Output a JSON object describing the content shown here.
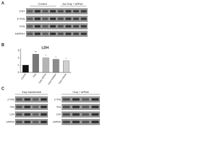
{
  "panel_a": {
    "label": "A",
    "column_headers": [
      "Control",
      "Ad-Gαq + siRNA"
    ],
    "rows": [
      "LDH",
      "p-Gαq",
      "Gαq",
      "GAPDH"
    ]
  },
  "chart_data": {
    "type": "bar",
    "panel_label": "B",
    "title": "LDH",
    "categories": [
      "Control",
      "Gαq",
      "Gαq+siRNA",
      "Gαq+inhibitor",
      "Gαq+vehicle"
    ],
    "values": [
      1.0,
      2.5,
      2.0,
      1.8,
      1.6
    ],
    "colors": [
      "#111111",
      "#777777",
      "#b5b5b5",
      "#8c8c8c",
      "#cfcfcf"
    ],
    "bar_annotations": [
      null,
      "**",
      "*",
      "*",
      "*"
    ],
    "ylim": [
      0,
      3
    ],
    "yticks": [
      0,
      1,
      2,
      3
    ]
  },
  "panel_c": {
    "label": "C",
    "left": {
      "header": "Gαq transfected",
      "rows": [
        "p-Gαq",
        "Gαq",
        "LDH",
        "GAPDH"
      ]
    },
    "right": {
      "header": "Gαq + siRNA",
      "rows": [
        "p-Gαq",
        "Gαq",
        "LDH",
        "GAPDH"
      ]
    }
  }
}
